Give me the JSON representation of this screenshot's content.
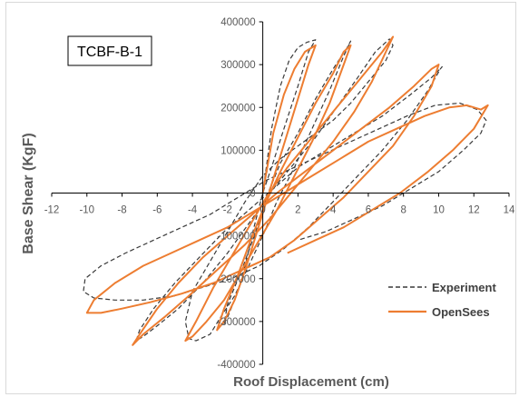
{
  "chart_data": {
    "type": "line",
    "inset_label": "TCBF-B-1",
    "xlabel": "Roof Displacement (cm)",
    "ylabel": "Base Shear (KgF)",
    "xlim": [
      -12,
      14
    ],
    "ylim": [
      -400000,
      400000
    ],
    "x_ticks": [
      -12,
      -10,
      -8,
      -6,
      -4,
      -2,
      0,
      2,
      4,
      6,
      8,
      10,
      12,
      14
    ],
    "y_ticks": [
      400000,
      300000,
      200000,
      100000,
      0,
      -100000,
      -200000,
      -300000,
      -400000
    ],
    "legend_position": "lower-right",
    "grid": false,
    "colors": {
      "experiment": "#3a3a3a",
      "opensees": "#ed7d31",
      "axis": "#000000",
      "border": "#d9d9d9"
    },
    "series": [
      {
        "name": "Experiment",
        "style": "dashed",
        "x": [
          0.0,
          0.5,
          1.0,
          1.5,
          2.0,
          2.5,
          3.0,
          2.6,
          2.0,
          1.2,
          0.5,
          0.0,
          -0.5,
          -1.0,
          -1.5,
          -2.0,
          -2.2,
          -2.0,
          -1.2,
          -0.4,
          0.3,
          0.9,
          1.0,
          2.0,
          3.0,
          4.0,
          4.8,
          5.0,
          4.6,
          3.8,
          2.8,
          1.8,
          0.8,
          0.0,
          -0.8,
          -1.6,
          -2.4,
          -3.0,
          -3.8,
          -4.2,
          -4.4,
          -4.0,
          -3.0,
          -2.0,
          -1.0,
          0.0,
          1.0,
          2.0,
          3.0,
          4.0,
          5.0,
          6.0,
          7.0,
          7.4,
          7.2,
          6.4,
          5.4,
          4.2,
          3.0,
          1.8,
          0.6,
          -0.6,
          -2.0,
          -3.4,
          -4.8,
          -6.0,
          -6.8,
          -7.2,
          -7.0,
          -6.2,
          -5.0,
          -3.6,
          -2.2,
          -0.8,
          0.6,
          2.0,
          3.6,
          5.2,
          6.8,
          8.4,
          9.6,
          10.2,
          10.1,
          9.4,
          8.2,
          6.8,
          5.4,
          4.0,
          2.6,
          1.2,
          -0.2,
          -1.8,
          -3.4,
          -5.0,
          -6.8,
          -8.4,
          -9.6,
          -10.2,
          -10.1,
          -9.2,
          -7.8,
          -6.2,
          -4.6,
          -3.0,
          -1.4,
          0.2,
          1.8,
          3.4,
          5.0,
          6.6,
          8.2,
          9.8,
          11.2,
          12.2,
          12.7,
          12.4,
          11.4,
          10.0,
          8.4,
          6.8,
          5.2,
          3.6,
          2.0
        ],
        "y": [
          0,
          150000,
          250000,
          310000,
          340000,
          352000,
          358000,
          330000,
          250000,
          150000,
          60000,
          0,
          -80000,
          -170000,
          -240000,
          -290000,
          -305000,
          -260000,
          -180000,
          -90000,
          0,
          60000,
          70000,
          140000,
          220000,
          290000,
          340000,
          355000,
          320000,
          240000,
          150000,
          60000,
          -20000,
          -100000,
          -170000,
          -240000,
          -290000,
          -330000,
          -345000,
          -340000,
          -300000,
          -230000,
          -160000,
          -90000,
          -20000,
          40000,
          80000,
          110000,
          140000,
          170000,
          210000,
          260000,
          310000,
          345000,
          360000,
          330000,
          270000,
          200000,
          130000,
          70000,
          10000,
          -60000,
          -140000,
          -210000,
          -270000,
          -310000,
          -335000,
          -345000,
          -320000,
          -270000,
          -210000,
          -150000,
          -90000,
          -40000,
          10000,
          60000,
          100000,
          140000,
          180000,
          230000,
          270000,
          295000,
          290000,
          240000,
          170000,
          100000,
          40000,
          -20000,
          -80000,
          -130000,
          -170000,
          -200000,
          -220000,
          -240000,
          -250000,
          -250000,
          -245000,
          -230000,
          -200000,
          -170000,
          -140000,
          -110000,
          -80000,
          -50000,
          -10000,
          30000,
          60000,
          90000,
          120000,
          150000,
          180000,
          205000,
          210000,
          195000,
          170000,
          140000,
          100000,
          50000,
          10000,
          -30000,
          -60000,
          -90000,
          -110000
        ]
      },
      {
        "name": "OpenSees",
        "style": "solid",
        "x": [
          0.0,
          0.6,
          1.2,
          1.8,
          2.4,
          3.0,
          2.6,
          2.0,
          1.4,
          0.8,
          0.2,
          -0.4,
          -1.0,
          -1.6,
          -2.2,
          -2.6,
          -2.2,
          -1.4,
          -0.6,
          0.2,
          1.0,
          2.0,
          3.0,
          4.0,
          4.6,
          5.0,
          4.6,
          3.8,
          2.8,
          1.8,
          0.8,
          -0.2,
          -1.2,
          -2.2,
          -3.2,
          -4.0,
          -4.4,
          -3.8,
          -2.8,
          -1.8,
          -0.8,
          0.2,
          1.4,
          2.8,
          4.2,
          5.6,
          6.8,
          7.4,
          7.0,
          6.2,
          5.2,
          4.0,
          2.8,
          1.6,
          0.4,
          -1.0,
          -2.6,
          -4.2,
          -5.6,
          -6.8,
          -7.4,
          -7.0,
          -6.0,
          -4.8,
          -3.4,
          -2.0,
          -0.6,
          0.8,
          2.4,
          4.0,
          5.6,
          7.2,
          8.6,
          9.6,
          10.0,
          9.6,
          8.6,
          7.4,
          6.0,
          4.6,
          3.2,
          1.8,
          0.4,
          -1.2,
          -2.8,
          -4.6,
          -6.4,
          -8.0,
          -9.2,
          -10.0,
          -9.6,
          -8.4,
          -6.8,
          -5.2,
          -3.6,
          -2.0,
          -0.4,
          1.2,
          2.8,
          4.4,
          6.0,
          7.6,
          9.2,
          10.6,
          11.6,
          12.4,
          12.8,
          12.0,
          10.8,
          9.4,
          7.8,
          6.2,
          4.6,
          3.0,
          1.4
        ],
        "y": [
          0,
          140000,
          230000,
          290000,
          330000,
          345000,
          300000,
          220000,
          140000,
          60000,
          -20000,
          -100000,
          -180000,
          -250000,
          -300000,
          -320000,
          -270000,
          -190000,
          -100000,
          -20000,
          50000,
          130000,
          210000,
          280000,
          330000,
          345000,
          300000,
          210000,
          120000,
          40000,
          -40000,
          -110000,
          -180000,
          -250000,
          -300000,
          -335000,
          -345000,
          -300000,
          -220000,
          -150000,
          -80000,
          -10000,
          60000,
          130000,
          200000,
          270000,
          330000,
          365000,
          330000,
          260000,
          190000,
          120000,
          60000,
          0,
          -60000,
          -120000,
          -180000,
          -240000,
          -290000,
          -330000,
          -355000,
          -330000,
          -270000,
          -210000,
          -150000,
          -100000,
          -50000,
          0,
          50000,
          100000,
          150000,
          200000,
          250000,
          290000,
          300000,
          250000,
          180000,
          110000,
          50000,
          -10000,
          -60000,
          -110000,
          -150000,
          -180000,
          -210000,
          -235000,
          -255000,
          -270000,
          -280000,
          -280000,
          -250000,
          -210000,
          -170000,
          -140000,
          -110000,
          -80000,
          -40000,
          0,
          40000,
          80000,
          120000,
          150000,
          180000,
          200000,
          205000,
          195000,
          205000,
          150000,
          100000,
          50000,
          0,
          -40000,
          -80000,
          -110000,
          -140000
        ]
      }
    ]
  }
}
